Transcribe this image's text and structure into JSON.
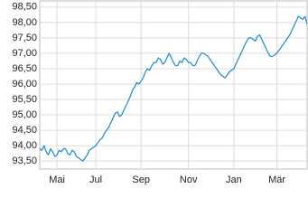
{
  "chart_data": {
    "type": "line",
    "values": [
      93.9,
      93.85,
      94.0,
      93.8,
      93.7,
      93.9,
      93.8,
      93.65,
      93.7,
      93.85,
      93.8,
      93.9,
      93.9,
      93.75,
      93.7,
      93.85,
      93.8,
      93.65,
      93.6,
      93.55,
      93.5,
      93.6,
      93.7,
      93.85,
      93.9,
      93.95,
      94.0,
      94.1,
      94.2,
      94.25,
      94.4,
      94.5,
      94.6,
      94.75,
      94.9,
      95.05,
      95.1,
      94.95,
      95.0,
      95.15,
      95.3,
      95.45,
      95.6,
      95.8,
      95.9,
      96.05,
      96.0,
      96.1,
      96.2,
      96.4,
      96.5,
      96.45,
      96.6,
      96.7,
      96.7,
      96.85,
      96.8,
      96.65,
      96.7,
      96.85,
      97.0,
      96.85,
      96.7,
      96.6,
      96.6,
      96.75,
      96.7,
      96.85,
      96.8,
      96.7,
      96.7,
      96.6,
      96.6,
      96.75,
      96.9,
      97.0,
      97.0,
      96.95,
      96.9,
      96.8,
      96.7,
      96.6,
      96.5,
      96.4,
      96.3,
      96.25,
      96.2,
      96.3,
      96.4,
      96.45,
      96.5,
      96.65,
      96.8,
      96.95,
      97.1,
      97.25,
      97.4,
      97.5,
      97.5,
      97.45,
      97.4,
      97.55,
      97.6,
      97.45,
      97.3,
      97.15,
      97.0,
      96.9,
      96.9,
      96.95,
      97.0,
      97.1,
      97.2,
      97.3,
      97.4,
      97.5,
      97.6,
      97.75,
      97.9,
      98.05,
      98.2,
      98.15,
      98.1,
      98.2,
      97.95
    ],
    "color": "#1a8ad4",
    "xlim": [
      0,
      124
    ],
    "xticks": [
      {
        "value": 8,
        "label": "Mai"
      },
      {
        "value": 26,
        "label": "Jul"
      },
      {
        "value": 47,
        "label": "Sep"
      },
      {
        "value": 69,
        "label": "Nov"
      },
      {
        "value": 90,
        "label": "Jan"
      },
      {
        "value": 110,
        "label": "Mär"
      }
    ],
    "ylim": [
      93.24,
      98.7
    ],
    "yticks": [
      {
        "value": 93.5,
        "label": "93,50"
      },
      {
        "value": 94,
        "label": "94,00"
      },
      {
        "value": 94.5,
        "label": "94,50"
      },
      {
        "value": 95,
        "label": "95,00"
      },
      {
        "value": 95.5,
        "label": "95,50"
      },
      {
        "value": 96,
        "label": "96,00"
      },
      {
        "value": 96.5,
        "label": "96,50"
      },
      {
        "value": 97,
        "label": "97,00"
      },
      {
        "value": 97.5,
        "label": "97,50"
      },
      {
        "value": 98,
        "label": "98,00"
      },
      {
        "value": 98.5,
        "label": "98,50"
      }
    ],
    "grid": true
  }
}
